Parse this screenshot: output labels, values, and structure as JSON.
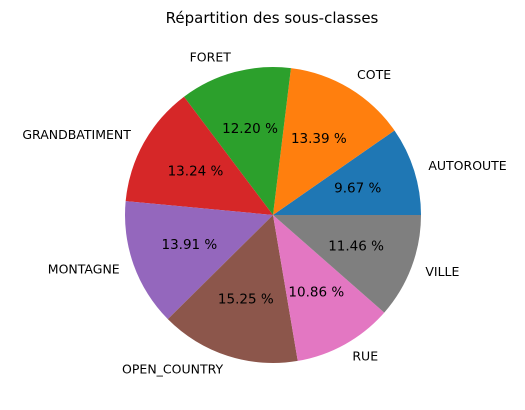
{
  "chart_data": {
    "type": "pie",
    "title": "Répartition des sous-classes",
    "slices": [
      {
        "label": "AUTOROUTE",
        "value": 9.67,
        "pct_label": "9.67 %",
        "color": "#1f77b4"
      },
      {
        "label": "COTE",
        "value": 13.39,
        "pct_label": "13.39 %",
        "color": "#ff7f0e"
      },
      {
        "label": "FORET",
        "value": 12.2,
        "pct_label": "12.20 %",
        "color": "#2ca02c"
      },
      {
        "label": "GRANDBATIMENT",
        "value": 13.24,
        "pct_label": "13.24 %",
        "color": "#d62728"
      },
      {
        "label": "MONTAGNE",
        "value": 13.91,
        "pct_label": "13.91 %",
        "color": "#9467bd"
      },
      {
        "label": "OPEN_COUNTRY",
        "value": 15.25,
        "pct_label": "15.25 %",
        "color": "#8c564b"
      },
      {
        "label": "RUE",
        "value": 10.86,
        "pct_label": "10.86 %",
        "color": "#e377c2"
      },
      {
        "label": "VILLE",
        "value": 11.46,
        "pct_label": "11.46 %",
        "color": "#7f7f7f"
      }
    ],
    "start_angle_deg": 0,
    "direction": "counterclockwise"
  }
}
